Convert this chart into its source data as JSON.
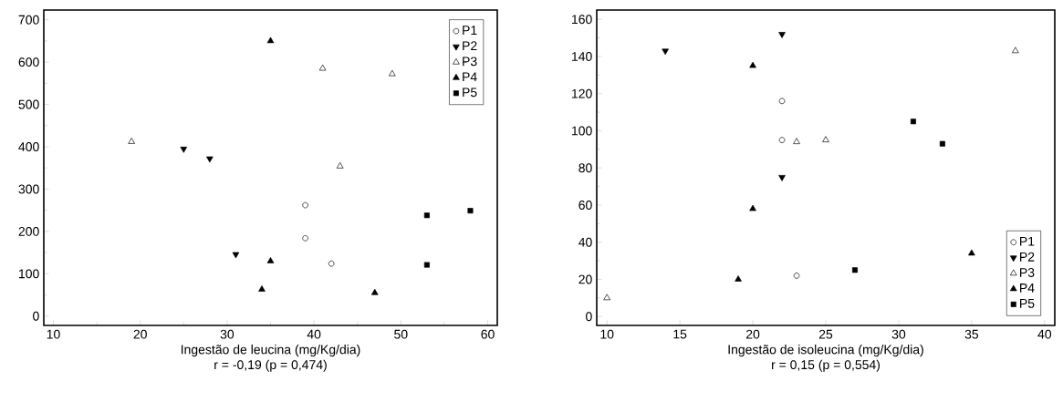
{
  "chart_data": [
    {
      "type": "scatter",
      "xlabel": "Ingestão de leucina (mg/Kg/dia)",
      "annotations": [
        "r = -0,19 (p = 0,474)"
      ],
      "xlim": [
        8.9,
        61.1
      ],
      "ylim": [
        -22,
        723
      ],
      "xticks": [
        10,
        20,
        30,
        40,
        50,
        60
      ],
      "yticks": [
        0,
        100,
        200,
        300,
        400,
        500,
        600,
        700
      ],
      "legend": "top right",
      "series": [
        {
          "name": "P1",
          "color": "#000000",
          "marker": "circle",
          "x": [
            39,
            39,
            42
          ],
          "values": [
            262,
            184,
            124
          ]
        },
        {
          "name": "P2",
          "color": "#000000",
          "marker": "triangle-down",
          "x": [
            25,
            28,
            31
          ],
          "values": [
            395,
            372,
            146
          ]
        },
        {
          "name": "P3",
          "color": "#000000",
          "marker": "triangle",
          "x": [
            19,
            41,
            49,
            43
          ],
          "values": [
            412,
            585,
            572,
            354
          ]
        },
        {
          "name": "P4",
          "color": "#000000",
          "marker": "triangle",
          "x": [
            35,
            34,
            35,
            47
          ],
          "values": [
            650,
            63,
            130,
            55
          ]
        },
        {
          "name": "P5",
          "color": "#000000",
          "marker": "square",
          "x": [
            53,
            58,
            53
          ],
          "values": [
            238,
            249,
            121
          ]
        }
      ]
    },
    {
      "type": "scatter",
      "xlabel": "Ingestão de isoleucina (mg/Kg/dia)",
      "annotations": [
        "r = 0,15 (p = 0,554)"
      ],
      "xlim": [
        9.3,
        40.7
      ],
      "ylim": [
        -4.8,
        165
      ],
      "xticks": [
        10,
        15,
        20,
        25,
        30,
        35,
        40
      ],
      "yticks": [
        0,
        20,
        40,
        60,
        80,
        100,
        120,
        140,
        160
      ],
      "legend": "bottom right",
      "series": [
        {
          "name": "P1",
          "color": "#000000",
          "marker": "circle",
          "x": [
            22,
            22,
            23
          ],
          "values": [
            116,
            95,
            22
          ]
        },
        {
          "name": "P2",
          "color": "#000000",
          "marker": "triangle-down",
          "x": [
            14,
            22,
            22
          ],
          "values": [
            143,
            152,
            75
          ]
        },
        {
          "name": "P3",
          "color": "#000000",
          "marker": "triangle",
          "x": [
            10,
            23,
            25,
            38
          ],
          "values": [
            10,
            94,
            95,
            143
          ]
        },
        {
          "name": "P4",
          "color": "#000000",
          "marker": "triangle",
          "x": [
            20,
            20,
            19,
            35
          ],
          "values": [
            135,
            58,
            20,
            34
          ]
        },
        {
          "name": "P5",
          "color": "#000000",
          "marker": "square",
          "x": [
            31,
            33,
            27
          ],
          "values": [
            105,
            93,
            25
          ]
        }
      ]
    }
  ]
}
